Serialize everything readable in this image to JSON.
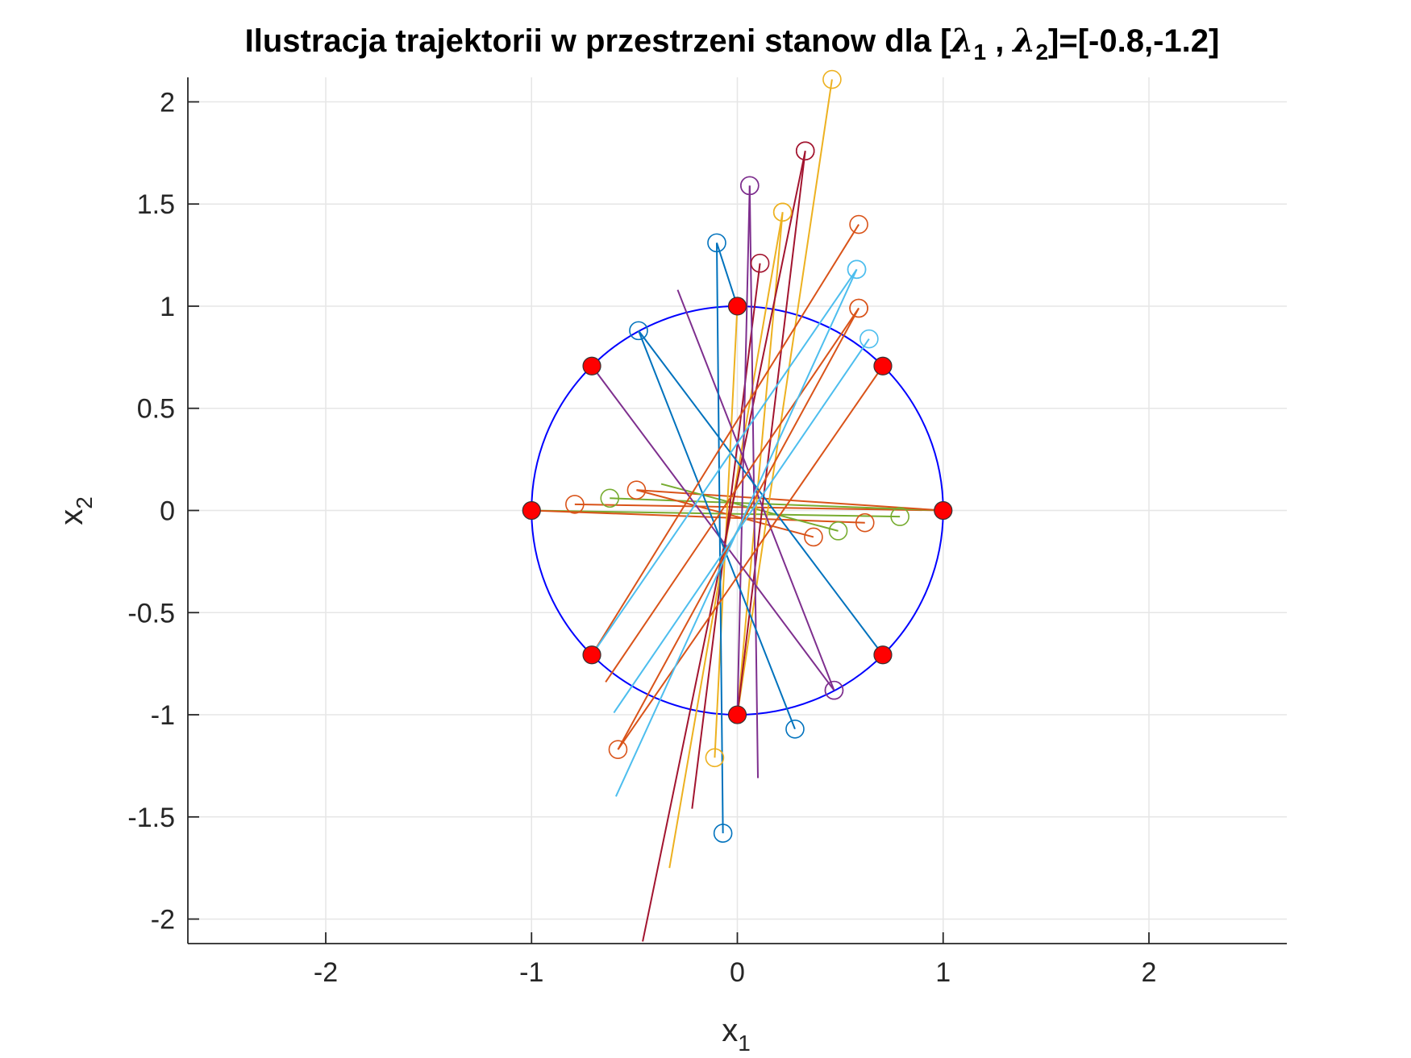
{
  "chart_data": {
    "type": "scatter",
    "title": {
      "prefix": "Ilustracja trajektorii w przestrzeni stanow dla [",
      "lambda1": "λ",
      "sub1": "1",
      "sep": " , ",
      "lambda2": "λ",
      "sub2": "2",
      "suffix": "]=[-0.8,-1.2]"
    },
    "xlabel": {
      "base": "x",
      "sub": "1"
    },
    "ylabel": {
      "base": "x",
      "sub": "2"
    },
    "xlim": [
      -2.67,
      2.67
    ],
    "ylim": [
      -2.12,
      2.12
    ],
    "xticks": [
      -2,
      -1,
      0,
      1,
      2
    ],
    "yticks": [
      -2,
      -1.5,
      -1,
      -0.5,
      0,
      0.5,
      1,
      1.5,
      2
    ],
    "xtick_labels": [
      "-2",
      "-1",
      "0",
      "1",
      "2"
    ],
    "ytick_labels": [
      "-2",
      "-1.5",
      "-1",
      "-0.5",
      "0",
      "0.5",
      "1",
      "1.5",
      "2"
    ],
    "grid": true,
    "circle": {
      "radius": 1,
      "color": "#0000ff"
    },
    "start_points": [
      [
        1,
        0
      ],
      [
        0.707,
        0.707
      ],
      [
        0,
        1
      ],
      [
        -0.707,
        0.707
      ],
      [
        -1,
        0
      ],
      [
        -0.707,
        -0.707
      ],
      [
        0,
        -1
      ],
      [
        0.707,
        -0.707
      ]
    ],
    "colors": {
      "blue": "#0072BD",
      "orange": "#D95319",
      "yellow": "#EDB120",
      "purple": "#7E2F8E",
      "green": "#77AC30",
      "cyan": "#4DBEEE",
      "maroon": "#A2142F",
      "marker_fill": "#ff0000",
      "grid": "#e6e6e6",
      "axis": "#262626"
    },
    "trajectories": [
      {
        "color": "orange",
        "points": [
          [
            1,
            0
          ],
          [
            -0.79,
            0.03
          ]
        ]
      },
      {
        "color": "green",
        "points": [
          [
            1,
            0
          ],
          [
            -0.62,
            0.06
          ]
        ]
      },
      {
        "color": "orange",
        "points": [
          [
            1,
            0
          ],
          [
            -0.49,
            0.1
          ]
        ]
      },
      {
        "color": "green",
        "points": [
          [
            -1,
            0
          ],
          [
            0.79,
            -0.03
          ]
        ]
      },
      {
        "color": "orange",
        "points": [
          [
            -1,
            0
          ],
          [
            0.62,
            -0.06
          ]
        ]
      },
      {
        "color": "green",
        "points": [
          [
            -0.37,
            0.13
          ],
          [
            0.49,
            -0.1
          ]
        ]
      },
      {
        "color": "orange",
        "points": [
          [
            -0.49,
            0.1
          ],
          [
            0.37,
            -0.13
          ]
        ]
      },
      {
        "color": "blue",
        "points": [
          [
            0,
            1
          ],
          [
            -0.1,
            1.31
          ]
        ]
      },
      {
        "color": "yellow",
        "points": [
          [
            0,
            1
          ],
          [
            -0.11,
            -1.21
          ]
        ]
      },
      {
        "color": "yellow",
        "points": [
          [
            0,
            -1
          ],
          [
            0.46,
            2.11
          ]
        ]
      },
      {
        "color": "yellow",
        "points": [
          [
            0,
            -1
          ],
          [
            0.22,
            1.46
          ]
        ]
      },
      {
        "color": "yellow",
        "points": [
          [
            -0.33,
            -1.75
          ],
          [
            0.22,
            1.46
          ]
        ]
      },
      {
        "color": "maroon",
        "points": [
          [
            0,
            -1
          ],
          [
            0.33,
            1.76
          ]
        ]
      },
      {
        "color": "maroon",
        "points": [
          [
            -0.46,
            -2.11
          ],
          [
            0.33,
            1.76
          ]
        ]
      },
      {
        "color": "maroon",
        "points": [
          [
            -0.22,
            -1.46
          ],
          [
            0.11,
            1.21
          ]
        ]
      },
      {
        "color": "purple",
        "points": [
          [
            0,
            -1
          ],
          [
            0.06,
            1.59
          ]
        ]
      },
      {
        "color": "purple",
        "points": [
          [
            0.1,
            -1.31
          ],
          [
            0.06,
            1.59
          ]
        ]
      },
      {
        "color": "purple",
        "points": [
          [
            -0.707,
            0.707
          ],
          [
            0.47,
            -0.88
          ]
        ]
      },
      {
        "color": "purple",
        "points": [
          [
            -0.29,
            1.08
          ],
          [
            0.47,
            -0.88
          ]
        ]
      },
      {
        "color": "blue",
        "points": [
          [
            0.707,
            -0.707
          ],
          [
            -0.48,
            0.88
          ]
        ]
      },
      {
        "color": "blue",
        "points": [
          [
            -0.48,
            0.88
          ],
          [
            0.28,
            -1.07
          ]
        ]
      },
      {
        "color": "blue",
        "points": [
          [
            -0.1,
            1.31
          ],
          [
            -0.07,
            -1.58
          ]
        ]
      },
      {
        "color": "orange",
        "points": [
          [
            0.707,
            0.707
          ],
          [
            -0.58,
            -1.17
          ]
        ]
      },
      {
        "color": "orange",
        "points": [
          [
            -0.707,
            -0.707
          ],
          [
            0.59,
            1.4
          ]
        ]
      },
      {
        "color": "orange",
        "points": [
          [
            -0.64,
            -0.84
          ],
          [
            0.59,
            0.99
          ]
        ]
      },
      {
        "color": "orange",
        "points": [
          [
            -0.58,
            -1.17
          ],
          [
            0.59,
            0.99
          ]
        ]
      },
      {
        "color": "cyan",
        "points": [
          [
            -0.707,
            -0.707
          ],
          [
            0.58,
            1.18
          ]
        ]
      },
      {
        "color": "cyan",
        "points": [
          [
            -0.6,
            -0.99
          ],
          [
            0.64,
            0.84
          ]
        ]
      },
      {
        "color": "cyan",
        "points": [
          [
            -0.59,
            -1.4
          ],
          [
            0.58,
            1.18
          ]
        ]
      }
    ]
  }
}
